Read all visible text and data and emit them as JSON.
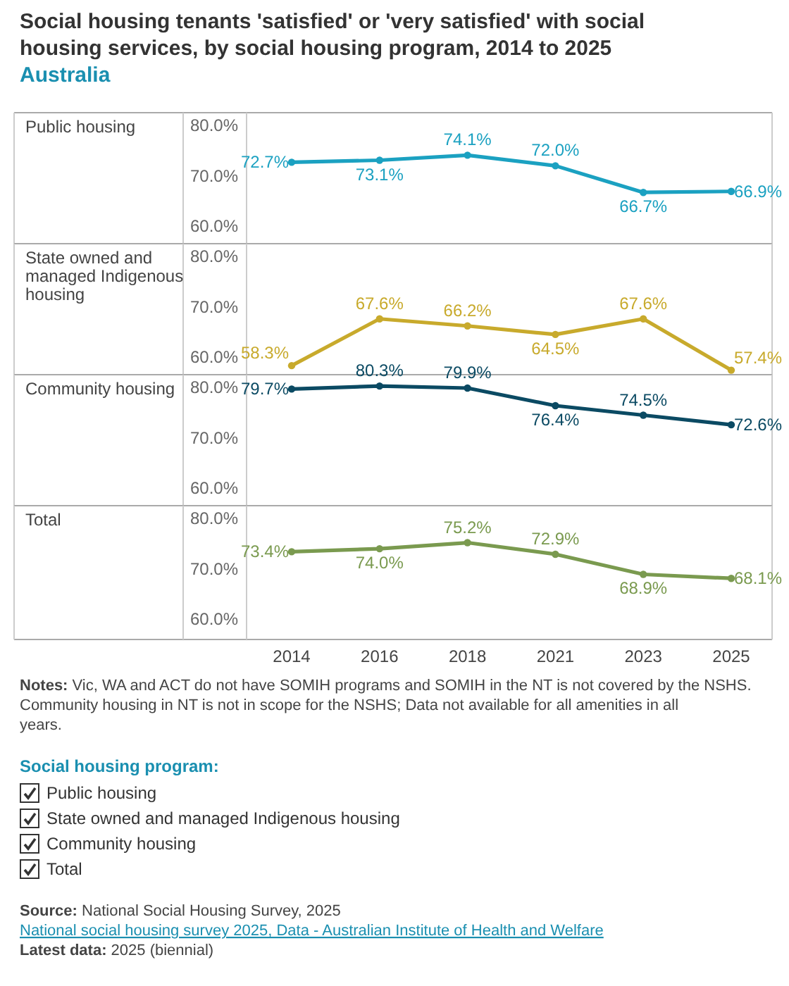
{
  "chart_data": [
    {
      "type": "line",
      "title": "Social housing tenants 'satisfied' or 'very satisfied' with social housing services, by social housing program, 2014 to 2025",
      "subtitle": "Australia",
      "legend_title": "Social housing program:",
      "legend": "top left",
      "categories": [
        "2014",
        "2016",
        "2018",
        "2021",
        "2023",
        "2025"
      ],
      "ylim": [
        56.5,
        82
      ],
      "yticks": [
        {
          "value": 60,
          "label": "60.0%"
        },
        {
          "value": 70,
          "label": "70.0%"
        },
        {
          "value": 80,
          "label": "80.0%"
        }
      ],
      "tick_labels": "y",
      "marker": "circle",
      "series": [
        {
          "name": "Public housing",
          "color": "#1ba1c1",
          "values": [
            72.7,
            73.1,
            74.1,
            72.0,
            66.7,
            66.9
          ],
          "value_labels": [
            "72.7%",
            "73.1%",
            "74.1%",
            "72.0%",
            "66.7%",
            "66.9%"
          ]
        }
      ]
    },
    {
      "type": "line",
      "legend": "top left",
      "categories": [
        "2014",
        "2016",
        "2018",
        "2021",
        "2023",
        "2025"
      ],
      "ylim": [
        56.5,
        82
      ],
      "yticks": [
        {
          "value": 60,
          "label": "60.0%"
        },
        {
          "value": 70,
          "label": "70.0%"
        },
        {
          "value": 80,
          "label": "80.0%"
        }
      ],
      "tick_labels": "y",
      "marker": "circle",
      "series": [
        {
          "name": "State owned and managed Indigenous housing",
          "color": "#c8aa2c",
          "values": [
            58.3,
            67.6,
            66.2,
            64.5,
            67.6,
            57.4
          ],
          "value_labels": [
            "58.3%",
            "67.6%",
            "66.2%",
            "64.5%",
            "67.6%",
            "57.4%"
          ]
        }
      ]
    },
    {
      "type": "line",
      "legend": "top left",
      "categories": [
        "2014",
        "2016",
        "2018",
        "2021",
        "2023",
        "2025"
      ],
      "ylim": [
        56.5,
        82
      ],
      "yticks": [
        {
          "value": 60,
          "label": "60.0%"
        },
        {
          "value": 70,
          "label": "70.0%"
        },
        {
          "value": 80,
          "label": "80.0%"
        }
      ],
      "tick_labels": "y",
      "marker": "circle",
      "series": [
        {
          "name": "Community housing",
          "color": "#0b4a63",
          "values": [
            79.7,
            80.3,
            79.9,
            76.4,
            74.5,
            72.6
          ],
          "value_labels": [
            "79.7%",
            "80.3%",
            "79.9%",
            "76.4%",
            "74.5%",
            "72.6%"
          ]
        }
      ]
    },
    {
      "type": "line",
      "legend": "top left",
      "categories": [
        "2014",
        "2016",
        "2018",
        "2021",
        "2023",
        "2025"
      ],
      "ylim": [
        56.5,
        82
      ],
      "yticks": [
        {
          "value": 60,
          "label": "60.0%"
        },
        {
          "value": 70,
          "label": "70.0%"
        },
        {
          "value": 80,
          "label": "80.0%"
        }
      ],
      "marker": "circle",
      "series": [
        {
          "name": "Total",
          "color": "#7a9a4f",
          "values": [
            73.4,
            74.0,
            75.2,
            72.9,
            68.9,
            68.1
          ],
          "value_labels": [
            "73.4%",
            "74.0%",
            "75.2%",
            "72.9%",
            "68.9%",
            "68.1%"
          ]
        }
      ],
      "annotations": [
        "Notes: Vic, WA and ACT do not have SOMIH programs and SOMIH in the NT is not covered by the NSHS. Community housing in NT is not in scope for the NSHS; Data not available for all amenities in all years.",
        "Source: National Social Housing Survey, 2025",
        "National social housing survey 2025, Data - Australian Institute of Health and Welfare",
        "Latest data: 2025 (biennial)"
      ]
    }
  ]
}
